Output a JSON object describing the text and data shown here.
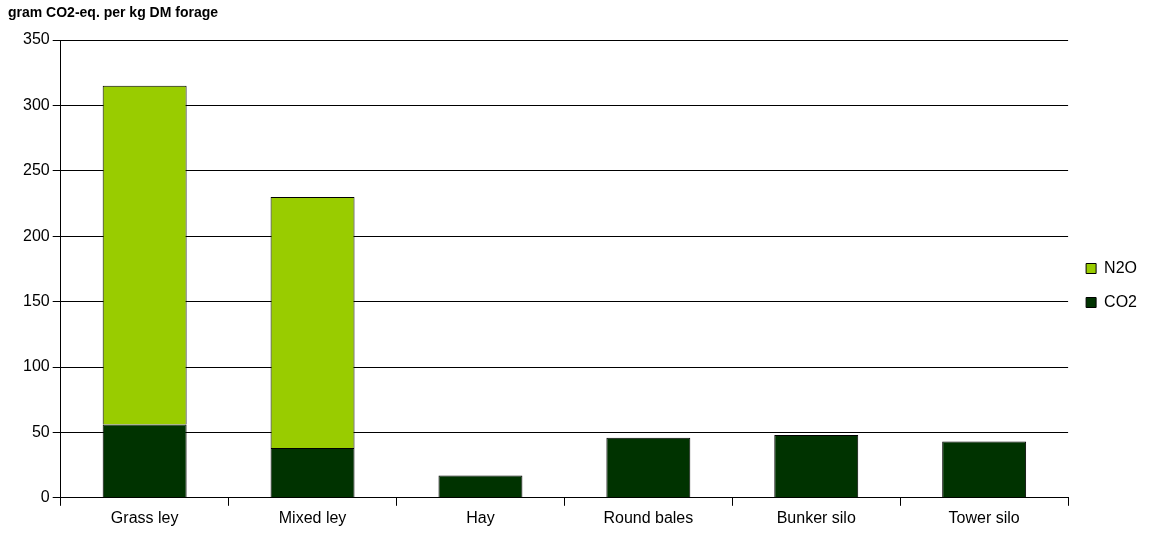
{
  "chart_data": {
    "type": "bar",
    "ylabel": "gram CO2-eq. per kg DM forage",
    "categories": [
      "Grass ley",
      "Mixed ley",
      "Hay",
      "Round bales",
      "Bunker silo",
      "Tower silo"
    ],
    "series": [
      {
        "name": "CO2",
        "color": "#003300",
        "values": [
          56,
          38,
          17,
          46,
          48,
          43
        ]
      },
      {
        "name": "N2O",
        "color": "#99cc00",
        "values": [
          259,
          192,
          null,
          null,
          null,
          null
        ]
      }
    ],
    "stacked": true,
    "ylim": [
      0,
      350
    ],
    "yticks": [
      0,
      50,
      100,
      150,
      200,
      250,
      300,
      350
    ],
    "grid": "y",
    "legend": "right"
  }
}
